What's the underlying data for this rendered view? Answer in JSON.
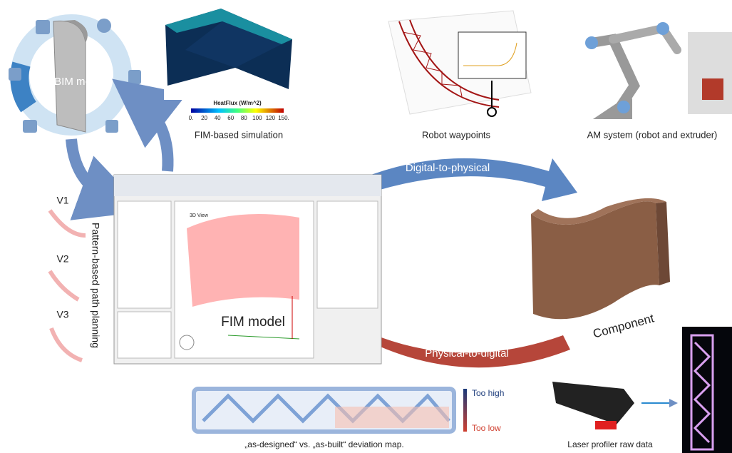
{
  "bim": {
    "label": "BIM model"
  },
  "simulation": {
    "caption": "FIM-based simulation",
    "colorbar_title": "HeatFlux (W/m^2)",
    "colorbar_ticks": [
      "0.",
      "20",
      "40",
      "60",
      "80",
      "100",
      "120",
      "150."
    ]
  },
  "waypoints": {
    "caption": "Robot waypoints"
  },
  "am_system": {
    "caption": "AM system (robot and extruder)"
  },
  "arrows": {
    "top": "Digital-to-physical",
    "bottom": "Physical-to-digital"
  },
  "component": {
    "label": "Component"
  },
  "fim": {
    "label": "FIM model",
    "view_tab": "3D View"
  },
  "path_planning": {
    "title": "Pattern-based path planning",
    "variants": [
      "V1",
      "V2",
      "V3"
    ]
  },
  "deviation": {
    "caption": "„as-designed“ vs. „as-built“ deviation map.",
    "high": "Too high",
    "low": "Too low"
  },
  "laser": {
    "caption": "Laser profiler raw data"
  }
}
